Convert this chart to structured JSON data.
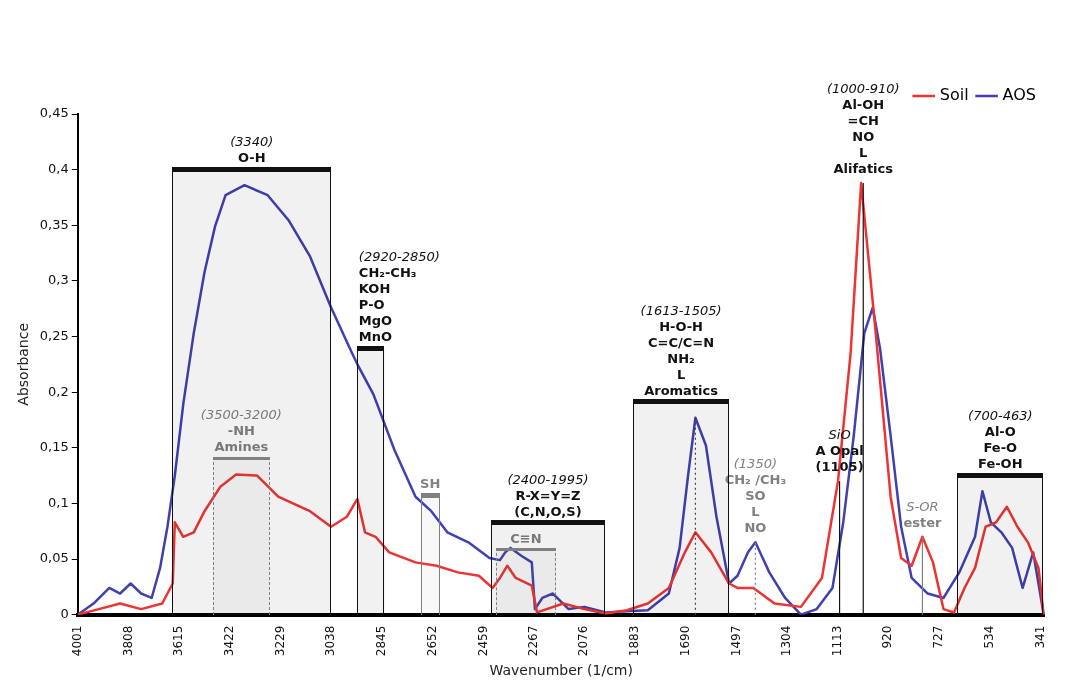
{
  "chart_data": {
    "type": "line",
    "xlabel": "Wavenumber (1/cm)",
    "ylabel": "Absorbance",
    "xlim": [
      4001,
      325
    ],
    "xticks": [
      4001,
      3808,
      3615,
      3422,
      3229,
      3038,
      2845,
      2652,
      2459,
      2267,
      2076,
      1883,
      1690,
      1497,
      1304,
      1113,
      920,
      727,
      534,
      341
    ],
    "ylim": [
      0,
      0.45
    ],
    "yticks": [
      0,
      {
        "value": 0.05,
        "label": "0,05"
      },
      {
        "value": 0.1,
        "label": "0,1"
      },
      {
        "value": 0.15,
        "label": "0,15"
      },
      {
        "value": 0.2,
        "label": "0,2"
      },
      {
        "value": 0.25,
        "label": "0,25"
      },
      {
        "value": 0.3,
        "label": "0,3"
      },
      {
        "value": 0.35,
        "label": "0,35"
      },
      {
        "value": 0.4,
        "label": "0,4"
      },
      {
        "value": 0.45,
        "label": "0,45"
      }
    ],
    "legend": "top right",
    "marker": "none",
    "line_style": "solid",
    "series": [
      {
        "name": "Soil",
        "color": "#ee3333",
        "x": [
          4001,
          3921,
          3840,
          3760,
          3680,
          3640,
          3632,
          3600,
          3560,
          3519,
          3459,
          3399,
          3319,
          3239,
          3118,
          3038,
          2978,
          2938,
          2909,
          2869,
          2817,
          2717,
          2637,
          2556,
          2476,
          2424,
          2396,
          2368,
          2336,
          2275,
          2255,
          2155,
          2075,
          1994,
          1914,
          1834,
          1754,
          1693,
          1653,
          1593,
          1525,
          1493,
          1433,
          1352,
          1252,
          1172,
          1111,
          1063,
          1023,
          971,
          911,
          871,
          831,
          790,
          750,
          710,
          670,
          630,
          590,
          550,
          510,
          469,
          429,
          389,
          349,
          329
        ],
        "values": [
          0,
          0.005,
          0.01,
          0.005,
          0.01,
          0.028,
          0.083,
          0.07,
          0.074,
          0.093,
          0.115,
          0.126,
          0.125,
          0.106,
          0.093,
          0.079,
          0.088,
          0.104,
          0.074,
          0.07,
          0.056,
          0.047,
          0.044,
          0.038,
          0.035,
          0.024,
          0.033,
          0.044,
          0.033,
          0.026,
          0.002,
          0.01,
          0.005,
          0.001,
          0.004,
          0.01,
          0.024,
          0.056,
          0.074,
          0.056,
          0.028,
          0.024,
          0.024,
          0.01,
          0.007,
          0.033,
          0.12,
          0.235,
          0.388,
          0.262,
          0.106,
          0.051,
          0.044,
          0.07,
          0.047,
          0.005,
          0.002,
          0.024,
          0.042,
          0.079,
          0.083,
          0.097,
          0.079,
          0.065,
          0.042,
          0
        ]
      },
      {
        "name": "AOS",
        "color": "#4040b0",
        "x": [
          4001,
          3941,
          3881,
          3840,
          3800,
          3760,
          3720,
          3688,
          3660,
          3632,
          3600,
          3560,
          3519,
          3479,
          3439,
          3367,
          3279,
          3198,
          3118,
          3038,
          2958,
          2938,
          2877,
          2797,
          2717,
          2657,
          2596,
          2516,
          2436,
          2396,
          2376,
          2356,
          2315,
          2275,
          2263,
          2235,
          2195,
          2135,
          2075,
          1994,
          1914,
          1834,
          1754,
          1713,
          1681,
          1653,
          1613,
          1573,
          1525,
          1493,
          1453,
          1425,
          1372,
          1312,
          1252,
          1192,
          1132,
          1091,
          1051,
          1011,
          979,
          951,
          911,
          871,
          831,
          770,
          710,
          650,
          590,
          562,
          530,
          490,
          449,
          409,
          369,
          329
        ],
        "values": [
          0,
          0.01,
          0.024,
          0.019,
          0.028,
          0.019,
          0.015,
          0.042,
          0.079,
          0.125,
          0.189,
          0.253,
          0.308,
          0.349,
          0.377,
          0.386,
          0.377,
          0.354,
          0.322,
          0.276,
          0.235,
          0.225,
          0.198,
          0.148,
          0.106,
          0.093,
          0.074,
          0.065,
          0.051,
          0.049,
          0.056,
          0.06,
          0.053,
          0.047,
          0.005,
          0.015,
          0.019,
          0.005,
          0.007,
          0.002,
          0.003,
          0.004,
          0.019,
          0.06,
          0.125,
          0.177,
          0.152,
          0.088,
          0.028,
          0.035,
          0.056,
          0.065,
          0.038,
          0.015,
          0,
          0.005,
          0.024,
          0.083,
          0.161,
          0.253,
          0.276,
          0.239,
          0.161,
          0.079,
          0.033,
          0.019,
          0.015,
          0.038,
          0.07,
          0.111,
          0.083,
          0.074,
          0.06,
          0.024,
          0.056,
          0
        ]
      }
    ],
    "bands": [
      {
        "axis": "x",
        "from": 3487,
        "to": 3271,
        "label": "(3500-3200)\n-NH\nAmines",
        "color": "#808080"
      },
      {
        "axis": "x",
        "from": 2697,
        "to": 2625,
        "label": "SH",
        "color": "#808080"
      },
      {
        "axis": "x",
        "from": 2412,
        "to": 2183,
        "label": "C≡N",
        "color": "#808080"
      },
      {
        "axis": "x",
        "from": 3641,
        "to": 3038,
        "label": "(3340)\nO-H",
        "color": "#111111"
      },
      {
        "axis": "x",
        "from": 2940,
        "to": 2835,
        "label": "(2920-2850)\nCH₂-CH₃\nKOH\nP-O\nMgO\nMnO",
        "color": "#111111"
      },
      {
        "axis": "x",
        "from": 2430,
        "to": 1997,
        "label": "(2400-1995)\nR-X=Y=Z\n(C,N,O,S)",
        "color": "#111111"
      },
      {
        "axis": "x",
        "from": 1890,
        "to": 1525,
        "label": "(1613-1505)\nH-O-H\nC=C/C=N\nNH₂\nL\nAromatics",
        "color": "#111111"
      },
      {
        "axis": "x",
        "from": 658,
        "to": 330,
        "label": "(700-463)\nAl-O\nFe-O\nFe-OH",
        "color": "#111111"
      }
    ],
    "ref_lines": [
      {
        "axis": "x",
        "value": 1653,
        "label": null,
        "color": "#444444",
        "line_style": "dotted"
      },
      {
        "axis": "x",
        "value": 1425,
        "label": "(1350)\nCH₂ /CH₃\nSO\nL\nNO",
        "color": "#808080",
        "line_style": "dotted"
      },
      {
        "axis": "x",
        "value": 1105,
        "label": "SiO\nA Opal\n(1105)",
        "color": "#111111",
        "line_style": "solid"
      },
      {
        "axis": "x",
        "value": 1015,
        "label": "(1000-910)\nAl-OH\n=CH\nNO\nL\nAlifatics",
        "color": "#111111",
        "line_style": "solid"
      },
      {
        "axis": "x",
        "value": 790,
        "label": "S-OR\nester",
        "color": "#808080",
        "line_style": "solid"
      }
    ]
  }
}
